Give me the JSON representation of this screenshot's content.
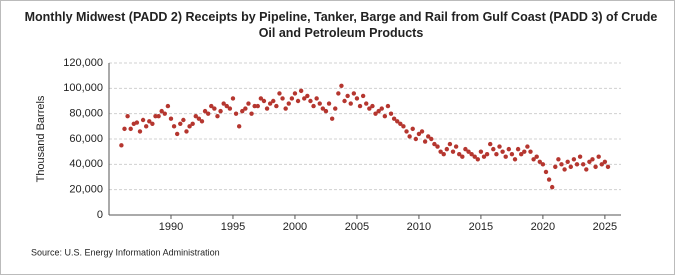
{
  "chart_data": {
    "type": "scatter",
    "title": "Monthly Midwest (PADD 2) Receipts by Pipeline, Tanker, Barge and Rail from Gulf Coast (PADD 3) of Crude Oil and Petroleum Products",
    "y_label": "Thousand Barrels",
    "source": "Source: U.S. Energy Information Administration",
    "color": "#b5362f",
    "grid": true,
    "xlim": [
      1985,
      2026.3
    ],
    "xticks": [
      1990,
      1995,
      2000,
      2005,
      2010,
      2015,
      2020,
      2025
    ],
    "ylim": [
      0,
      120000
    ],
    "yticks": [
      0,
      {
        "value": 20000,
        "label": "20,000"
      },
      {
        "value": 40000,
        "label": "40,000"
      },
      {
        "value": 60000,
        "label": "60,000"
      },
      {
        "value": 80000,
        "label": "80,000"
      },
      {
        "value": 100000,
        "label": "100,000"
      },
      {
        "value": 120000,
        "label": "120,000"
      }
    ],
    "x": [
      1986,
      1986.25,
      1986.5,
      1986.75,
      1987,
      1987.25,
      1987.5,
      1987.75,
      1988,
      1988.25,
      1988.5,
      1988.75,
      1989,
      1989.25,
      1989.5,
      1989.75,
      1990,
      1990.25,
      1990.5,
      1990.75,
      1991,
      1991.25,
      1991.5,
      1991.75,
      1992,
      1992.25,
      1992.5,
      1992.75,
      1993,
      1993.25,
      1993.5,
      1993.75,
      1994,
      1994.25,
      1994.5,
      1994.75,
      1995,
      1995.25,
      1995.5,
      1995.75,
      1996,
      1996.25,
      1996.5,
      1996.75,
      1997,
      1997.25,
      1997.5,
      1997.75,
      1998,
      1998.25,
      1998.5,
      1998.75,
      1999,
      1999.25,
      1999.5,
      1999.75,
      2000,
      2000.25,
      2000.5,
      2000.75,
      2001,
      2001.25,
      2001.5,
      2001.75,
      2002,
      2002.25,
      2002.5,
      2002.75,
      2003,
      2003.25,
      2003.5,
      2003.75,
      2004,
      2004.25,
      2004.5,
      2004.75,
      2005,
      2005.25,
      2005.5,
      2005.75,
      2006,
      2006.25,
      2006.5,
      2006.75,
      2007,
      2007.25,
      2007.5,
      2007.75,
      2008,
      2008.25,
      2008.5,
      2008.75,
      2009,
      2009.25,
      2009.5,
      2009.75,
      2010,
      2010.25,
      2010.5,
      2010.75,
      2011,
      2011.25,
      2011.5,
      2011.75,
      2012,
      2012.25,
      2012.5,
      2012.75,
      2013,
      2013.25,
      2013.5,
      2013.75,
      2014,
      2014.25,
      2014.5,
      2014.75,
      2015,
      2015.25,
      2015.5,
      2015.75,
      2016,
      2016.25,
      2016.5,
      2016.75,
      2017,
      2017.25,
      2017.5,
      2017.75,
      2018,
      2018.25,
      2018.5,
      2018.75,
      2019,
      2019.25,
      2019.5,
      2019.75,
      2020,
      2020.25,
      2020.5,
      2020.75,
      2021,
      2021.25,
      2021.5,
      2021.75,
      2022,
      2022.25,
      2022.5,
      2022.75,
      2023,
      2023.25,
      2023.5,
      2023.75,
      2024,
      2024.25,
      2024.5,
      2024.75,
      2025,
      2025.25
    ],
    "values": [
      55000,
      68000,
      78000,
      68000,
      72000,
      73000,
      66000,
      75000,
      70000,
      74000,
      72000,
      78000,
      78000,
      82000,
      80000,
      86000,
      76000,
      70000,
      64000,
      72000,
      75000,
      66000,
      70000,
      72000,
      78000,
      76000,
      74000,
      82000,
      80000,
      86000,
      84000,
      78000,
      82000,
      88000,
      86000,
      84000,
      92000,
      80000,
      70000,
      82000,
      84000,
      88000,
      80000,
      86000,
      86000,
      92000,
      90000,
      84000,
      88000,
      90000,
      86000,
      96000,
      92000,
      84000,
      88000,
      92000,
      96000,
      90000,
      98000,
      92000,
      94000,
      90000,
      86000,
      92000,
      88000,
      84000,
      82000,
      88000,
      76000,
      84000,
      96000,
      102000,
      90000,
      94000,
      88000,
      96000,
      92000,
      86000,
      94000,
      88000,
      84000,
      86000,
      80000,
      82000,
      84000,
      78000,
      86000,
      80000,
      76000,
      74000,
      72000,
      70000,
      66000,
      62000,
      68000,
      60000,
      64000,
      66000,
      58000,
      62000,
      60000,
      56000,
      54000,
      50000,
      48000,
      52000,
      56000,
      50000,
      54000,
      48000,
      46000,
      52000,
      50000,
      48000,
      46000,
      44000,
      50000,
      46000,
      48000,
      56000,
      52000,
      48000,
      54000,
      50000,
      46000,
      52000,
      48000,
      44000,
      52000,
      48000,
      50000,
      54000,
      50000,
      44000,
      46000,
      42000,
      40000,
      34000,
      28000,
      22000,
      38000,
      44000,
      40000,
      36000,
      42000,
      38000,
      44000,
      40000,
      46000,
      40000,
      36000,
      42000,
      44000,
      38000,
      46000,
      40000,
      42000,
      38000
    ]
  }
}
